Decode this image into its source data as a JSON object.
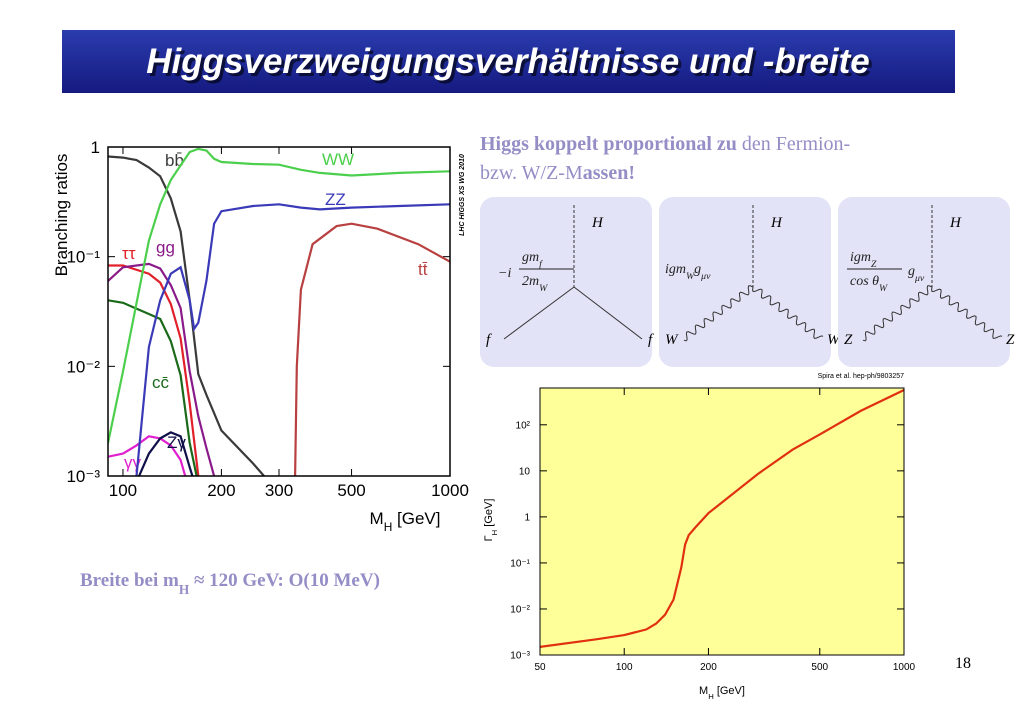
{
  "title": "Higgsverzweigungsverhältnisse und -breite",
  "intro": {
    "lines": [
      [
        {
          "text": "Higgs koppelt proportional zu",
          "bold": true
        },
        {
          "text": " den Fermion-",
          "bold": false
        }
      ],
      [
        {
          "text": "bzw. W/Z-M",
          "bold": false
        },
        {
          "text": "assen!",
          "bold": true
        }
      ]
    ]
  },
  "diagrams": [
    {
      "boson": "H",
      "prefix": "−i",
      "numerator": [
        "gm",
        "f"
      ],
      "denominator": [
        "2m",
        "W"
      ],
      "legs": [
        "f",
        "f"
      ]
    },
    {
      "boson": "H",
      "coupling": [
        "igm",
        "W",
        "g",
        "μν"
      ],
      "legs": [
        "W",
        "W"
      ]
    },
    {
      "boson": "H",
      "numerator": [
        "igm",
        "Z"
      ],
      "denominator": [
        "cos θ",
        "W"
      ],
      "suffix": [
        "g",
        "μν"
      ],
      "legs": [
        "Z",
        "Z"
      ]
    }
  ],
  "width_note": [
    "Breite bei m",
    "H",
    " ≈ 120 GeV: O(10 MeV)"
  ],
  "page_number": "18",
  "chart_data": [
    {
      "type": "line",
      "xscale": "log",
      "yscale": "log",
      "ylabel": "Branching ratios",
      "xlabel": [
        "M",
        "H",
        " [GeV]"
      ],
      "annotation": "LHC HIGGS XS WG 2010",
      "xlim": [
        90,
        1000
      ],
      "ylim": [
        0.001,
        1
      ],
      "xticks": [
        100,
        200,
        300,
        500,
        1000
      ],
      "yticks": [
        {
          "value": 0.001,
          "label": "10⁻³"
        },
        {
          "value": 0.01,
          "label": "10⁻²"
        },
        {
          "value": 0.1,
          "label": "10⁻¹"
        },
        1
      ],
      "series": [
        {
          "name": "bb̄",
          "color": "#3a3a3a",
          "x": [
            90,
            100,
            110,
            120,
            130,
            140,
            150,
            160,
            170,
            180,
            200,
            250,
            270
          ],
          "values": [
            0.82,
            0.8,
            0.76,
            0.65,
            0.54,
            0.34,
            0.17,
            0.04,
            0.0085,
            0.0055,
            0.0026,
            0.0013,
            0.001
          ]
        },
        {
          "name": "ττ",
          "color": "#e0202a",
          "x": [
            90,
            100,
            120,
            130,
            140,
            150,
            160,
            170
          ],
          "values": [
            0.083,
            0.083,
            0.07,
            0.058,
            0.037,
            0.018,
            0.0046,
            0.001
          ]
        },
        {
          "name": "gg",
          "color": "#8a1a8a",
          "x": [
            90,
            100,
            120,
            130,
            140,
            150,
            160,
            170,
            180,
            190
          ],
          "values": [
            0.06,
            0.08,
            0.086,
            0.078,
            0.055,
            0.034,
            0.009,
            0.0035,
            0.0018,
            0.001
          ]
        },
        {
          "name": "cc̄",
          "color": "#1a6a1a",
          "x": [
            90,
            100,
            120,
            130,
            140,
            150,
            160,
            168
          ],
          "values": [
            0.04,
            0.038,
            0.03,
            0.027,
            0.017,
            0.0083,
            0.002,
            0.001
          ]
        },
        {
          "name": "γγ",
          "color": "#e020d0",
          "x": [
            90,
            100,
            110,
            120,
            130,
            140,
            150,
            155
          ],
          "values": [
            0.0015,
            0.0016,
            0.0019,
            0.0023,
            0.0022,
            0.0019,
            0.0014,
            0.001
          ]
        },
        {
          "name": "Zγ",
          "color": "#10104a",
          "x": [
            112,
            120,
            130,
            140,
            150,
            160,
            163
          ],
          "values": [
            0.001,
            0.0016,
            0.0022,
            0.0025,
            0.0023,
            0.0012,
            0.001
          ]
        },
        {
          "name": "WW",
          "color": "#4ccf4c",
          "x": [
            90,
            100,
            120,
            130,
            140,
            150,
            160,
            170,
            180,
            190,
            200,
            250,
            300,
            350,
            400,
            500,
            700,
            1000
          ],
          "values": [
            0.002,
            0.009,
            0.14,
            0.3,
            0.5,
            0.68,
            0.9,
            0.96,
            0.93,
            0.78,
            0.73,
            0.7,
            0.69,
            0.62,
            0.58,
            0.55,
            0.58,
            0.6
          ]
        },
        {
          "name": "ZZ",
          "color": "#3a3ab8",
          "x": [
            110,
            120,
            130,
            140,
            150,
            160,
            165,
            170,
            180,
            190,
            200,
            250,
            300,
            350,
            400,
            500,
            700,
            1000
          ],
          "values": [
            0.001,
            0.015,
            0.04,
            0.07,
            0.08,
            0.04,
            0.022,
            0.025,
            0.06,
            0.2,
            0.26,
            0.29,
            0.3,
            0.28,
            0.27,
            0.28,
            0.29,
            0.3
          ]
        },
        {
          "name": "tt̄",
          "color": "#b84040",
          "x": [
            336,
            340,
            350,
            380,
            450,
            500,
            600,
            800,
            1000
          ],
          "values": [
            0.001,
            0.01,
            0.05,
            0.13,
            0.19,
            0.2,
            0.18,
            0.13,
            0.09
          ]
        }
      ]
    },
    {
      "type": "line",
      "xscale": "log",
      "yscale": "log",
      "source": "Spira et al. hep-ph/9803257",
      "ylabel": [
        "Γ",
        "H",
        " [GeV]"
      ],
      "xlabel": [
        "M",
        "H",
        " [GeV]"
      ],
      "background": "#ffff99",
      "color": "#e03010",
      "xlim": [
        50,
        1000
      ],
      "ylim": [
        0.001,
        630
      ],
      "xticks": [
        50,
        100,
        200,
        500,
        1000
      ],
      "yticks": [
        {
          "value": 0.001,
          "label": "10⁻³"
        },
        {
          "value": 0.01,
          "label": "10⁻²"
        },
        {
          "value": 0.1,
          "label": "10⁻¹"
        },
        1,
        10,
        {
          "value": 100,
          "label": "10²"
        }
      ],
      "x": [
        50,
        80,
        100,
        120,
        130,
        140,
        150,
        160,
        165,
        170,
        180,
        200,
        300,
        400,
        500,
        700,
        1000
      ],
      "values": [
        0.0015,
        0.0022,
        0.0027,
        0.0036,
        0.0048,
        0.0075,
        0.016,
        0.08,
        0.25,
        0.4,
        0.6,
        1.2,
        8.5,
        29,
        62,
        200,
        570
      ]
    }
  ]
}
